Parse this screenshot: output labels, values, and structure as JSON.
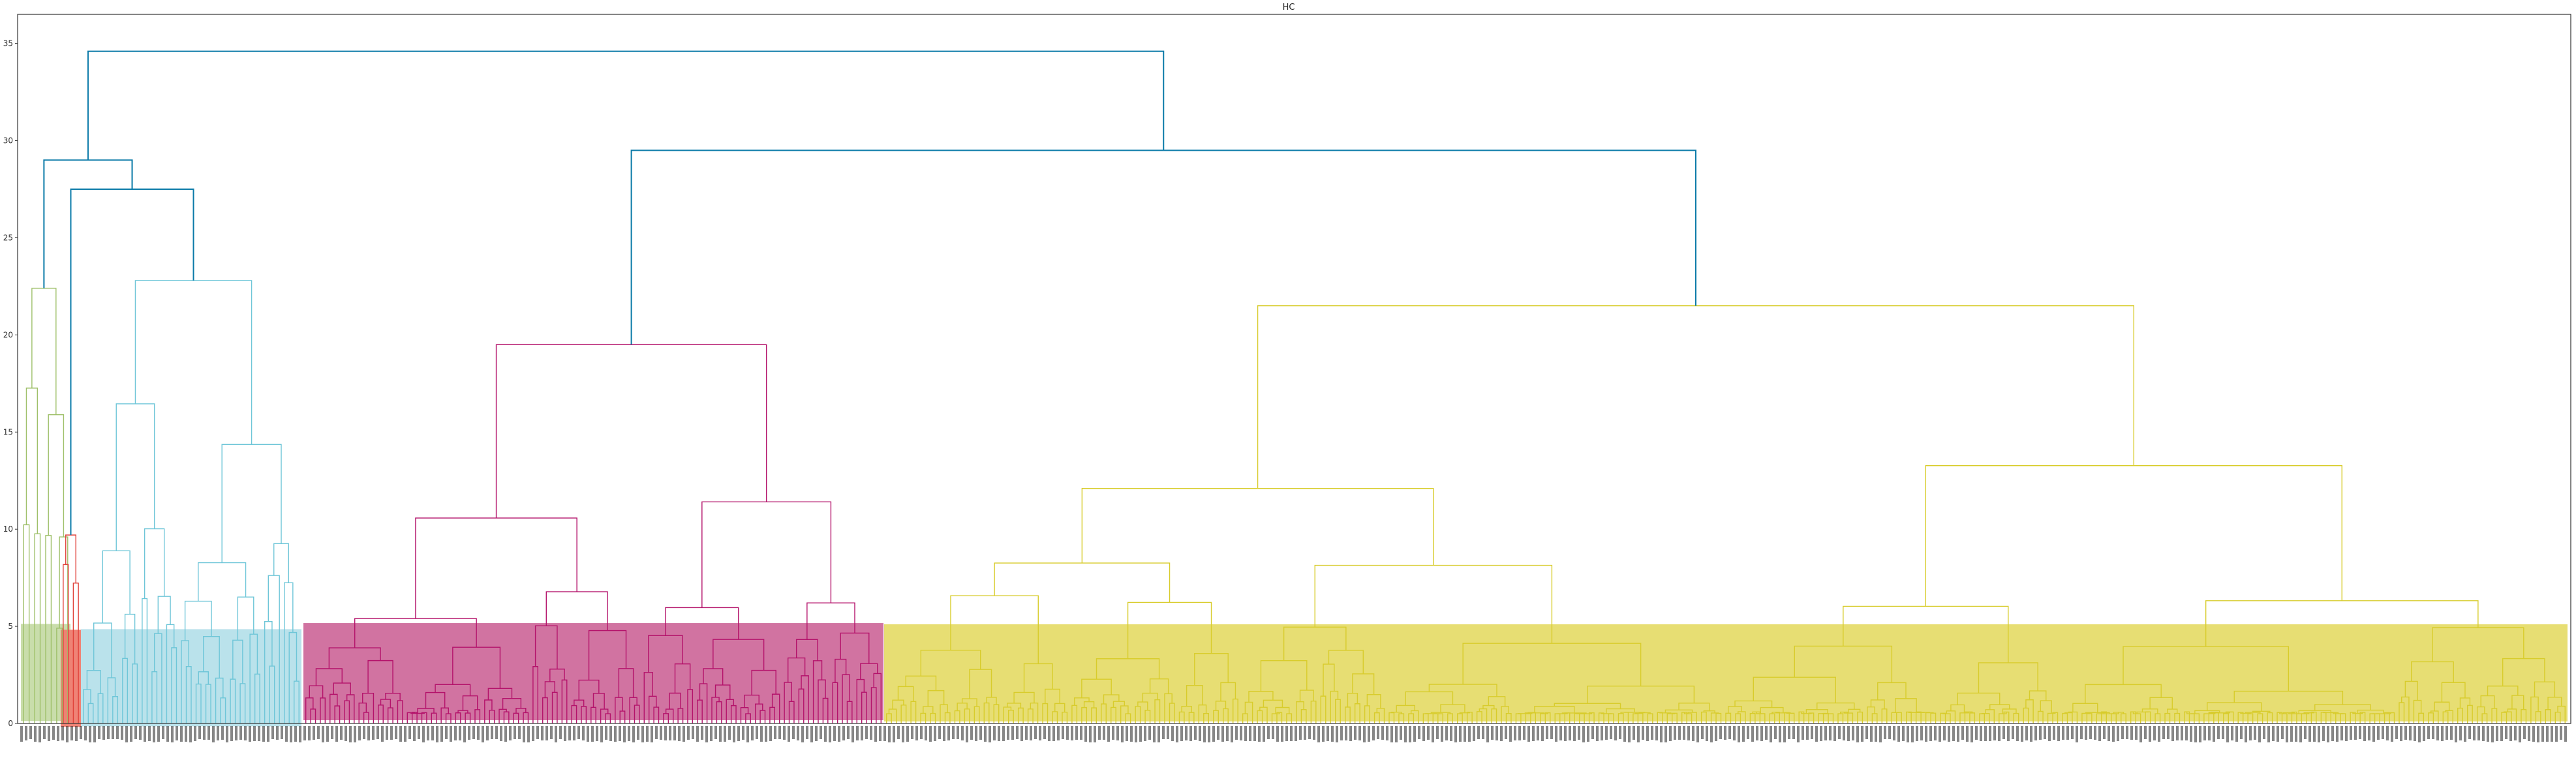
{
  "chart_data": {
    "type": "dendrogram",
    "title": "HC",
    "xlabel": "",
    "ylabel": "",
    "ylim": [
      0,
      36.5
    ],
    "yticks": [
      0,
      5,
      10,
      15,
      20,
      25,
      30,
      35
    ],
    "grid": false,
    "leaf_labels_note": "dense, overlapping, illegible leaf labels along the x axis",
    "clusters": [
      {
        "color": "#9fc06a",
        "fill": "#c6dba7",
        "leaves": 9,
        "top_height": 22.4
      },
      {
        "color": "#e0423a",
        "fill": "#ee7c6f",
        "leaves": 4,
        "top_height": 9.7
      },
      {
        "color": "#6fc6d8",
        "fill": "#b6e0ea",
        "leaves": 45,
        "top_height": 22.8
      },
      {
        "color": "#b4136b",
        "fill": "#cf6b9c",
        "leaves": 120,
        "top_height": 19.5
      },
      {
        "color": "#d8cc2c",
        "fill": "#e6dc6c",
        "leaves": 345,
        "top_height": 21.5
      }
    ],
    "above_threshold_color": "#0a7aa8",
    "top_links": [
      {
        "left": "green-cluster",
        "right": "red-light-blue",
        "height": 29.0
      },
      {
        "left": "red-cluster",
        "right": "light-blue-cluster",
        "height": 27.5
      },
      {
        "left": "magenta-cluster",
        "right": "yellow-cluster",
        "height": 29.5
      },
      {
        "left": "left-group",
        "right": "right-group",
        "height": 34.6
      }
    ]
  }
}
